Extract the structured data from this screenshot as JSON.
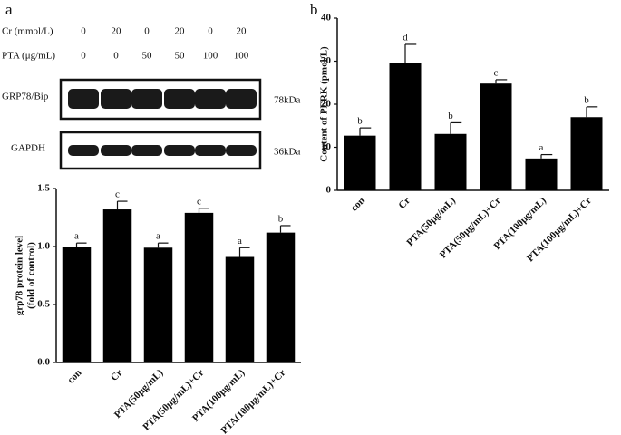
{
  "blot": {
    "panel": "a",
    "rows": [
      {
        "label": "Cr (mmol/L)",
        "values": [
          "0",
          "20",
          "0",
          "20",
          "0",
          "20"
        ]
      },
      {
        "label": "PTA (μg/mL)",
        "values": [
          "0",
          "0",
          "50",
          "50",
          "100",
          "100"
        ]
      }
    ],
    "bands": [
      {
        "label": "GRP78/Bip",
        "size": "78kDa"
      },
      {
        "label": "GAPDH",
        "size": "36kDa"
      }
    ]
  },
  "panel_b": "b",
  "chart_data": [
    {
      "type": "bar",
      "ylabel": [
        "grp78 protein level",
        "(fold of control)"
      ],
      "categories": [
        "con",
        "Cr",
        "PTA(50μg/mL)",
        "PTA(50μg/mL)+Cr",
        "PTA(100μg/mL)",
        "PTA(100μg/mL)+Cr"
      ],
      "values": [
        1.0,
        1.32,
        0.99,
        1.29,
        0.91,
        1.12
      ],
      "errors": [
        0.03,
        0.07,
        0.04,
        0.04,
        0.08,
        0.06
      ],
      "annotations": [
        "a",
        "c",
        "a",
        "c",
        "a",
        "b"
      ],
      "color": "#000000",
      "ylim": [
        0,
        1.5
      ],
      "yticks": [
        {
          "value": 0,
          "label": "0.0"
        },
        {
          "value": 0.5,
          "label": "0.5"
        },
        {
          "value": 1,
          "label": "1.0"
        },
        {
          "value": 1.5,
          "label": "1.5"
        }
      ]
    },
    {
      "type": "bar",
      "ylabel": [
        "Content of PERK (pmol/L)"
      ],
      "categories": [
        "con",
        "Cr",
        "PTA(50μg/mL)",
        "PTA(50μg/mL)+Cr",
        "PTA(100μg/mL)",
        "PTA(100μg/mL)+Cr"
      ],
      "values": [
        12.7,
        29.6,
        13.1,
        24.8,
        7.4,
        17.0
      ],
      "errors": [
        1.8,
        4.3,
        2.6,
        0.9,
        0.9,
        2.4
      ],
      "annotations": [
        "b",
        "d",
        "b",
        "c",
        "a",
        "b"
      ],
      "color": "#000000",
      "ylim": [
        0,
        40
      ],
      "yticks": [
        0,
        10,
        20,
        30,
        40
      ]
    }
  ]
}
